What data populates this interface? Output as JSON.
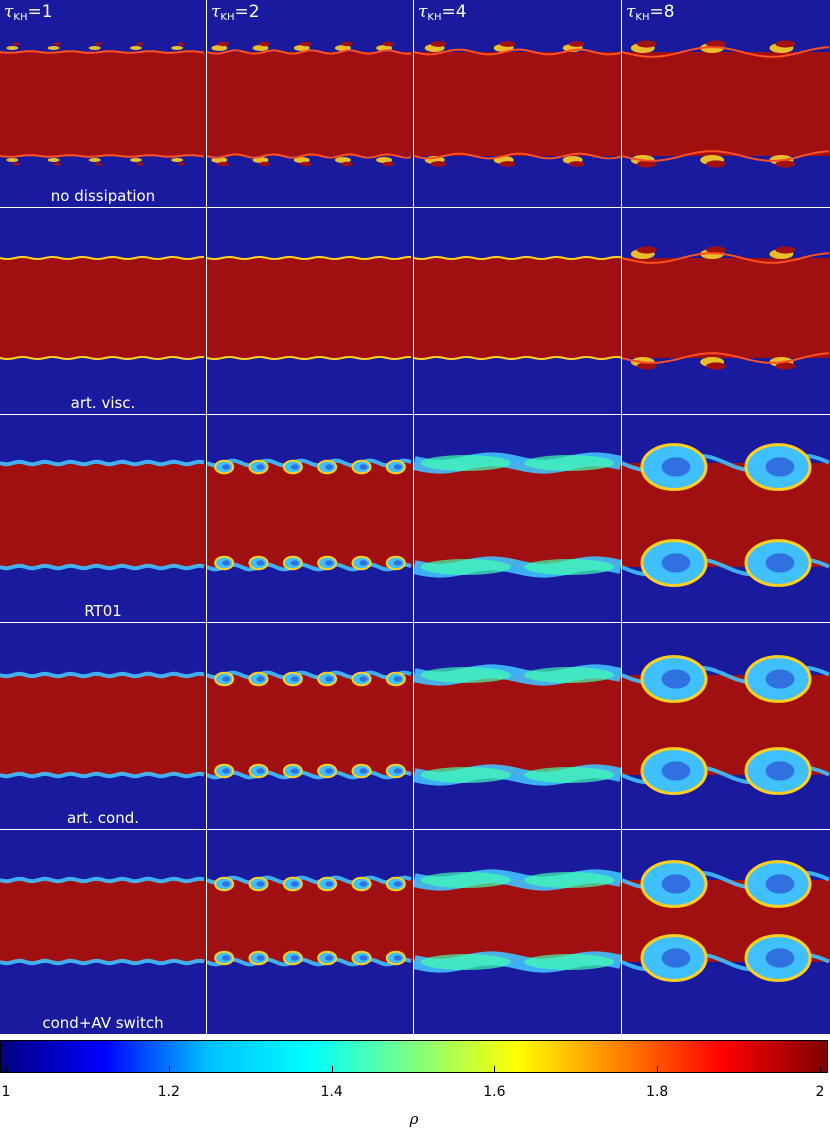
{
  "columns": [
    {
      "label_prefix": "τ",
      "subscript": "KH",
      "label_suffix": "=1"
    },
    {
      "label_prefix": "τ",
      "subscript": "KH",
      "label_suffix": "=2"
    },
    {
      "label_prefix": "τ",
      "subscript": "KH",
      "label_suffix": "=4"
    },
    {
      "label_prefix": "τ",
      "subscript": "KH",
      "label_suffix": "=8"
    }
  ],
  "rows": [
    {
      "label": "no dissipation"
    },
    {
      "label": "art. visc."
    },
    {
      "label": "RT01"
    },
    {
      "label": "art. cond."
    },
    {
      "label": "cond+AV switch"
    }
  ],
  "colorbar": {
    "variable": "ρ",
    "min": 1,
    "max": 2,
    "ticks": [
      "1",
      "1.2",
      "1.4",
      "1.6",
      "1.8",
      "2"
    ],
    "colormap": [
      "#00007f",
      "#0000ff",
      "#00bfff",
      "#00ffff",
      "#7fff7f",
      "#ffff00",
      "#ff7f00",
      "#ff0000",
      "#7f0000"
    ]
  },
  "colors": {
    "low_density": "#1a1a9e",
    "high_density": "#a01010",
    "mixed_cyan": "#40c0ff",
    "mixed_green": "#40ffb0",
    "mixed_yellow": "#ffd020",
    "divider": "#ffffff"
  }
}
